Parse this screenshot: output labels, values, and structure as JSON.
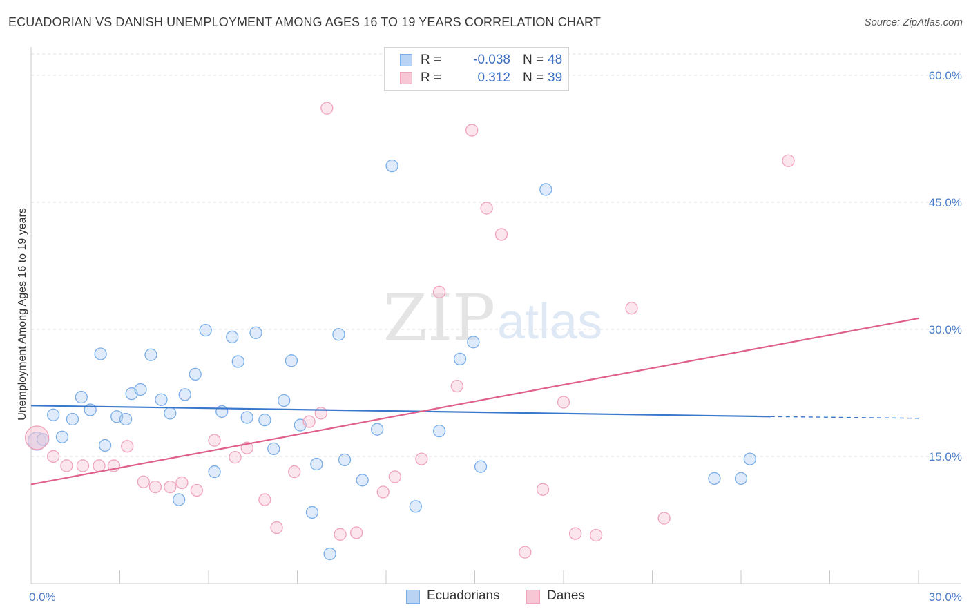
{
  "title": "ECUADORIAN VS DANISH UNEMPLOYMENT AMONG AGES 16 TO 19 YEARS CORRELATION CHART",
  "source": "Source: ZipAtlas.com",
  "watermark": {
    "zip": "ZIP",
    "atlas": "atlas"
  },
  "legend_stats": [
    {
      "r_label": "R =",
      "r_value": "-0.038",
      "n_label": "N =",
      "n_value": "48"
    },
    {
      "r_label": "R =",
      "r_value": "0.312",
      "n_label": "N =",
      "n_value": "39"
    }
  ],
  "chart_data": {
    "type": "scatter",
    "title": "ECUADORIAN VS DANISH UNEMPLOYMENT AMONG AGES 16 TO 19 YEARS CORRELATION CHART",
    "xlabel": "",
    "ylabel": "Unemployment Among Ages 16 to 19 years",
    "xlim": [
      0,
      30
    ],
    "ylim": [
      0,
      63
    ],
    "x_tick_labels": [
      {
        "value": 0,
        "label": "0.0%"
      },
      {
        "value": 30,
        "label": "30.0%"
      }
    ],
    "y_tick_labels": [
      {
        "value": 15,
        "label": "15.0%"
      },
      {
        "value": 30,
        "label": "30.0%"
      },
      {
        "value": 45,
        "label": "45.0%"
      },
      {
        "value": 60,
        "label": "60.0%"
      }
    ],
    "grid": true,
    "legend_position": "bottom",
    "series": [
      {
        "name": "Ecuadorians",
        "color": "#7aaee8",
        "fill": "#b8d3f3",
        "trend_color": "#3a78cc",
        "r": -0.038,
        "n": 48,
        "trend": {
          "x_start": 0,
          "y_start": 21.0,
          "x_end": 25,
          "y_end": 19.7,
          "x_dash_end": 30,
          "y_dash_end": 19.5
        },
        "points": [
          [
            0.2,
            16.8
          ],
          [
            0.4,
            17.0
          ],
          [
            0.75,
            19.9
          ],
          [
            1.05,
            17.3
          ],
          [
            1.4,
            19.4
          ],
          [
            1.7,
            22.0
          ],
          [
            2.0,
            20.5
          ],
          [
            2.35,
            27.1
          ],
          [
            2.5,
            16.3
          ],
          [
            2.9,
            19.7
          ],
          [
            3.2,
            19.4
          ],
          [
            3.4,
            22.4
          ],
          [
            3.7,
            22.9
          ],
          [
            4.05,
            27.0
          ],
          [
            4.4,
            21.7
          ],
          [
            4.7,
            20.1
          ],
          [
            5.0,
            9.9
          ],
          [
            5.2,
            22.3
          ],
          [
            5.55,
            24.7
          ],
          [
            5.9,
            29.9
          ],
          [
            6.2,
            13.2
          ],
          [
            6.45,
            20.3
          ],
          [
            6.8,
            29.1
          ],
          [
            7.0,
            26.2
          ],
          [
            7.3,
            19.6
          ],
          [
            7.6,
            29.6
          ],
          [
            7.9,
            19.3
          ],
          [
            8.2,
            15.9
          ],
          [
            8.55,
            21.6
          ],
          [
            8.8,
            26.3
          ],
          [
            9.1,
            18.7
          ],
          [
            9.5,
            8.4
          ],
          [
            9.65,
            14.1
          ],
          [
            10.1,
            3.5
          ],
          [
            10.4,
            29.4
          ],
          [
            10.6,
            14.6
          ],
          [
            11.2,
            12.2
          ],
          [
            11.7,
            18.2
          ],
          [
            12.2,
            49.3
          ],
          [
            13.0,
            9.1
          ],
          [
            13.8,
            18.0
          ],
          [
            14.5,
            26.5
          ],
          [
            14.95,
            28.5
          ],
          [
            15.2,
            13.8
          ],
          [
            17.4,
            46.5
          ],
          [
            23.1,
            12.4
          ],
          [
            24.0,
            12.4
          ],
          [
            24.3,
            14.7
          ]
        ]
      },
      {
        "name": "Danes",
        "color": "#f0a3bb",
        "fill": "#f8c7d6",
        "trend_color": "#e0608c",
        "r": 0.312,
        "n": 39,
        "trend": {
          "x_start": 0,
          "y_start": 11.7,
          "x_end": 30,
          "y_end": 31.3
        },
        "points": [
          [
            0.2,
            17.2
          ],
          [
            0.75,
            15.0
          ],
          [
            1.2,
            13.9
          ],
          [
            1.75,
            13.9
          ],
          [
            2.3,
            13.9
          ],
          [
            2.8,
            13.9
          ],
          [
            3.25,
            16.2
          ],
          [
            3.8,
            12.0
          ],
          [
            4.2,
            11.4
          ],
          [
            4.7,
            11.4
          ],
          [
            5.1,
            11.9
          ],
          [
            5.6,
            11.0
          ],
          [
            6.2,
            16.9
          ],
          [
            6.9,
            14.9
          ],
          [
            7.3,
            16.0
          ],
          [
            7.9,
            9.9
          ],
          [
            8.3,
            6.6
          ],
          [
            8.9,
            13.2
          ],
          [
            9.4,
            19.1
          ],
          [
            9.8,
            20.1
          ],
          [
            10.0,
            56.1
          ],
          [
            10.45,
            5.8
          ],
          [
            11.0,
            6.0
          ],
          [
            11.9,
            10.8
          ],
          [
            12.3,
            12.6
          ],
          [
            13.2,
            14.7
          ],
          [
            13.8,
            34.4
          ],
          [
            14.4,
            23.3
          ],
          [
            14.9,
            53.5
          ],
          [
            15.4,
            44.3
          ],
          [
            15.9,
            41.2
          ],
          [
            16.7,
            3.7
          ],
          [
            17.3,
            11.1
          ],
          [
            18.0,
            21.4
          ],
          [
            18.4,
            5.9
          ],
          [
            19.1,
            5.7
          ],
          [
            20.3,
            32.5
          ],
          [
            21.4,
            7.7
          ],
          [
            25.6,
            49.9
          ]
        ]
      }
    ]
  }
}
